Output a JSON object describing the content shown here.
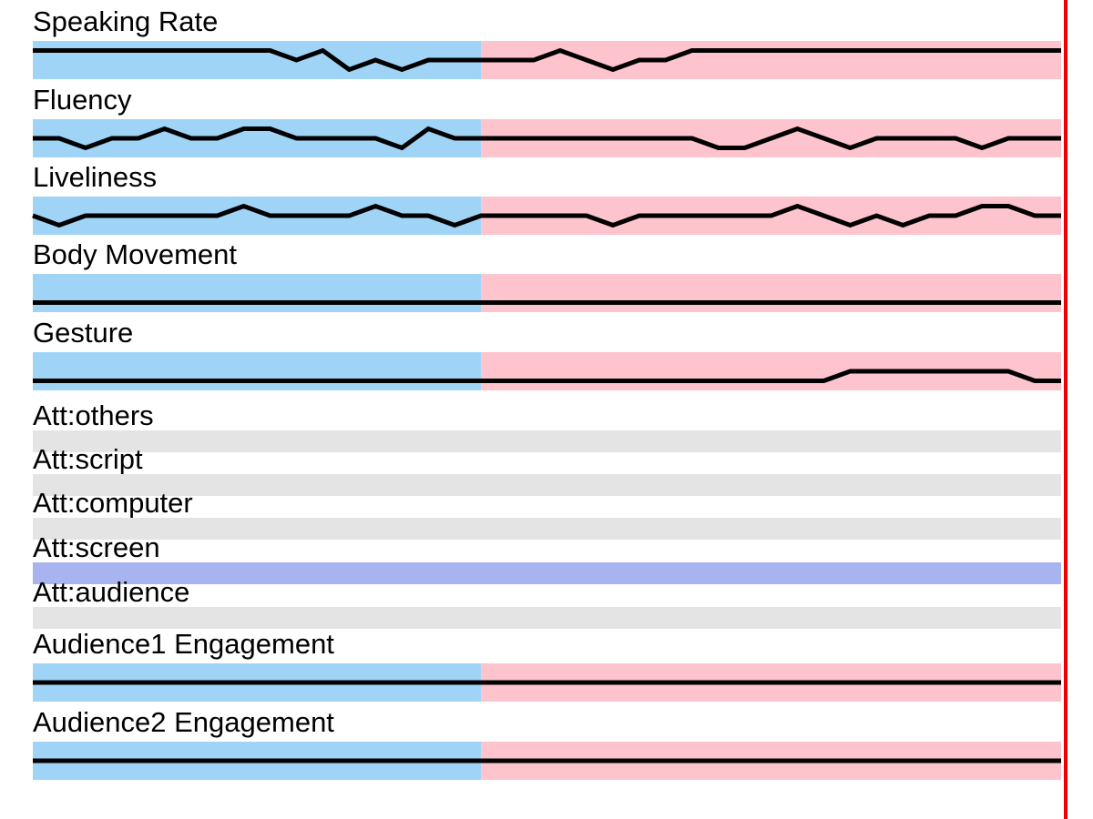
{
  "colors": {
    "background": "#ffffff",
    "segment_1": "#9fd4f7",
    "segment_2": "#fec4ce",
    "attention_inactive": "#e4e4e4",
    "attention_active": "#a8b4f0",
    "signal_line": "#000000",
    "cursor": "#ee0000"
  },
  "chart_data": {
    "type": "line",
    "x_points": 40,
    "segment_split_index": 17,
    "cursor_at_end": true,
    "signal_tracks": [
      {
        "label": "Speaking Rate",
        "values": [
          0.75,
          0.75,
          0.75,
          0.75,
          0.75,
          0.75,
          0.75,
          0.75,
          0.75,
          0.75,
          0.5,
          0.75,
          0.25,
          0.5,
          0.25,
          0.5,
          0.5,
          0.5,
          0.5,
          0.5,
          0.75,
          0.5,
          0.25,
          0.5,
          0.5,
          0.75,
          0.75,
          0.75,
          0.75,
          0.75,
          0.75,
          0.75,
          0.75,
          0.75,
          0.75,
          0.75,
          0.75,
          0.75,
          0.75,
          0.75
        ]
      },
      {
        "label": "Fluency",
        "values": [
          0.5,
          0.5,
          0.25,
          0.5,
          0.5,
          0.75,
          0.5,
          0.5,
          0.75,
          0.75,
          0.5,
          0.5,
          0.5,
          0.5,
          0.25,
          0.75,
          0.5,
          0.5,
          0.5,
          0.5,
          0.5,
          0.5,
          0.5,
          0.5,
          0.5,
          0.5,
          0.25,
          0.25,
          0.5,
          0.75,
          0.5,
          0.25,
          0.5,
          0.5,
          0.5,
          0.5,
          0.25,
          0.5,
          0.5,
          0.5
        ]
      },
      {
        "label": "Liveliness",
        "values": [
          0.5,
          0.25,
          0.5,
          0.5,
          0.5,
          0.5,
          0.5,
          0.5,
          0.75,
          0.5,
          0.5,
          0.5,
          0.5,
          0.75,
          0.5,
          0.5,
          0.25,
          0.5,
          0.5,
          0.5,
          0.5,
          0.5,
          0.25,
          0.5,
          0.5,
          0.5,
          0.5,
          0.5,
          0.5,
          0.75,
          0.5,
          0.25,
          0.5,
          0.25,
          0.5,
          0.5,
          0.75,
          0.75,
          0.5,
          0.5
        ]
      },
      {
        "label": "Body Movement",
        "values": [
          0.25,
          0.25,
          0.25,
          0.25,
          0.25,
          0.25,
          0.25,
          0.25,
          0.25,
          0.25,
          0.25,
          0.25,
          0.25,
          0.25,
          0.25,
          0.25,
          0.25,
          0.25,
          0.25,
          0.25,
          0.25,
          0.25,
          0.25,
          0.25,
          0.25,
          0.25,
          0.25,
          0.25,
          0.25,
          0.25,
          0.25,
          0.25,
          0.25,
          0.25,
          0.25,
          0.25,
          0.25,
          0.25,
          0.25,
          0.25
        ]
      },
      {
        "label": "Gesture",
        "values": [
          0.25,
          0.25,
          0.25,
          0.25,
          0.25,
          0.25,
          0.25,
          0.25,
          0.25,
          0.25,
          0.25,
          0.25,
          0.25,
          0.25,
          0.25,
          0.25,
          0.25,
          0.25,
          0.25,
          0.25,
          0.25,
          0.25,
          0.25,
          0.25,
          0.25,
          0.25,
          0.25,
          0.25,
          0.25,
          0.25,
          0.25,
          0.5,
          0.5,
          0.5,
          0.5,
          0.5,
          0.5,
          0.5,
          0.25,
          0.25
        ]
      }
    ],
    "attention_tracks": [
      {
        "label": "Att:others",
        "active": false
      },
      {
        "label": "Att:script",
        "active": false
      },
      {
        "label": "Att:computer",
        "active": false
      },
      {
        "label": "Att:screen",
        "active": true
      },
      {
        "label": "Att:audience",
        "active": false
      }
    ],
    "engagement_tracks": [
      {
        "label": "Audience1 Engagement",
        "values": [
          0.5,
          0.5,
          0.5,
          0.5,
          0.5,
          0.5,
          0.5,
          0.5,
          0.5,
          0.5,
          0.5,
          0.5,
          0.5,
          0.5,
          0.5,
          0.5,
          0.5,
          0.5,
          0.5,
          0.5,
          0.5,
          0.5,
          0.5,
          0.5,
          0.5,
          0.5,
          0.5,
          0.5,
          0.5,
          0.5,
          0.5,
          0.5,
          0.5,
          0.5,
          0.5,
          0.5,
          0.5,
          0.5,
          0.5,
          0.5
        ]
      },
      {
        "label": "Audience2 Engagement",
        "values": [
          0.5,
          0.5,
          0.5,
          0.5,
          0.5,
          0.5,
          0.5,
          0.5,
          0.5,
          0.5,
          0.5,
          0.5,
          0.5,
          0.5,
          0.5,
          0.5,
          0.5,
          0.5,
          0.5,
          0.5,
          0.5,
          0.5,
          0.5,
          0.5,
          0.5,
          0.5,
          0.5,
          0.5,
          0.5,
          0.5,
          0.5,
          0.5,
          0.5,
          0.5,
          0.5,
          0.5,
          0.5,
          0.5,
          0.5,
          0.5
        ]
      }
    ]
  }
}
